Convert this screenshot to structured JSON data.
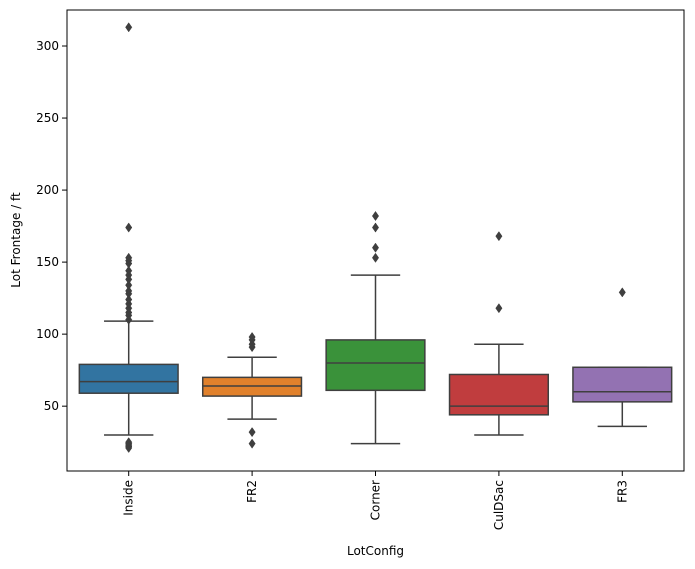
{
  "chart_data": {
    "type": "box",
    "xlabel": "LotConfig",
    "ylabel": "Lot Frontage / ft",
    "ylim": [
      5,
      325
    ],
    "yticks": [
      50,
      100,
      150,
      200,
      250,
      300
    ],
    "grid": false,
    "legend": "none",
    "categories": [
      "Inside",
      "FR2",
      "Corner",
      "CulDSac",
      "FR3"
    ],
    "colors": [
      "#3274a1",
      "#e1812c",
      "#3a923a",
      "#c03d3e",
      "#9372b2"
    ],
    "edge_color": "#3f3f3f",
    "boxes": [
      {
        "name": "Inside",
        "q1": 59,
        "median": 67,
        "q3": 79,
        "whisker_low": 30,
        "whisker_high": 109,
        "outliers": [
          21,
          22,
          23,
          24,
          25,
          110,
          113,
          115,
          118,
          121,
          124,
          128,
          130,
          134,
          138,
          141,
          144,
          149,
          151,
          153,
          174,
          313
        ]
      },
      {
        "name": "FR2",
        "q1": 57,
        "median": 64,
        "q3": 70,
        "whisker_low": 41,
        "whisker_high": 84,
        "outliers": [
          24,
          32,
          91,
          93,
          96,
          98
        ]
      },
      {
        "name": "Corner",
        "q1": 61,
        "median": 80,
        "q3": 96,
        "whisker_low": 24,
        "whisker_high": 141,
        "outliers": [
          153,
          160,
          174,
          182
        ]
      },
      {
        "name": "CulDSac",
        "q1": 44,
        "median": 50,
        "q3": 72,
        "whisker_low": 30,
        "whisker_high": 93,
        "outliers": [
          118,
          168
        ]
      },
      {
        "name": "FR3",
        "q1": 53,
        "median": 60,
        "q3": 77,
        "whisker_low": 36,
        "whisker_high": 77,
        "outliers": [
          129
        ]
      }
    ]
  }
}
